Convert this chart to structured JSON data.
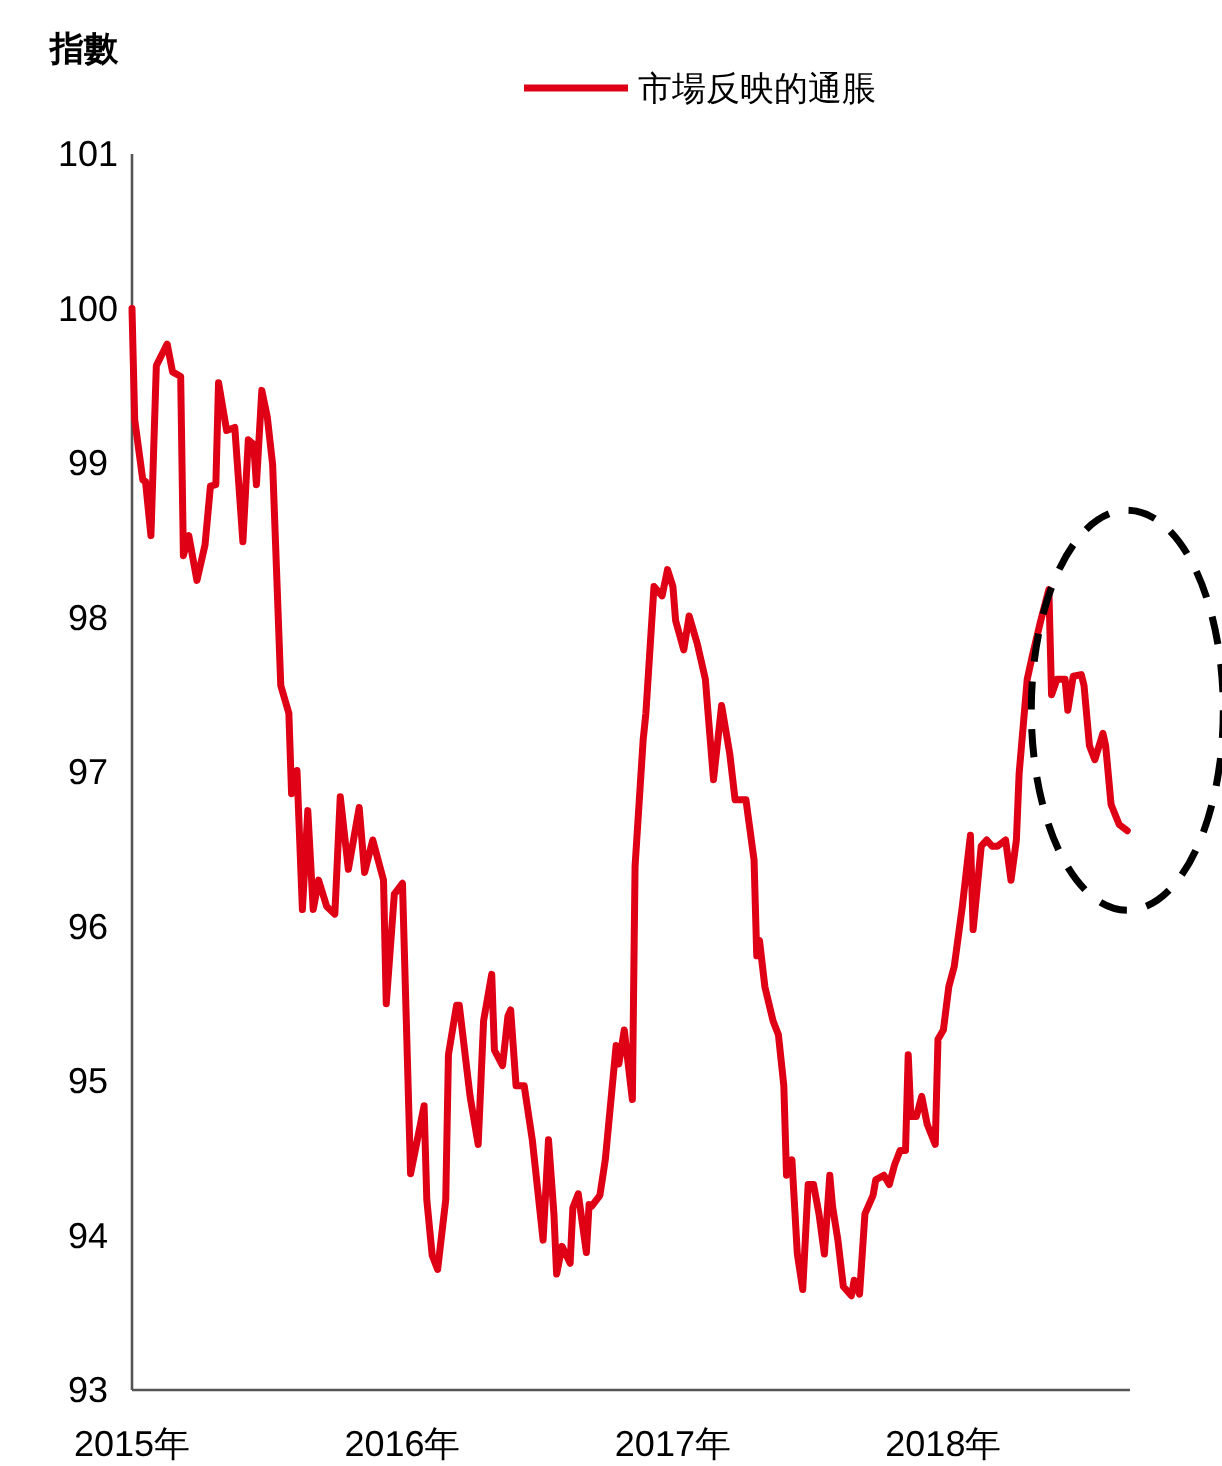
{
  "chart_data": {
    "type": "line",
    "ylabel": "指數",
    "legend": "top",
    "xlim": [
      2015,
      2018.69
    ],
    "xticks": [
      {
        "value": 2015,
        "label": "2015年"
      },
      {
        "value": 2016,
        "label": "2016年"
      },
      {
        "value": 2017,
        "label": "2017年"
      },
      {
        "value": 2018,
        "label": "2018年"
      }
    ],
    "ylim": [
      93,
      101
    ],
    "yticks": [
      93,
      94,
      95,
      96,
      97,
      98,
      99,
      100,
      101
    ],
    "series": [
      {
        "name": "市場反映的通脹",
        "color": "#e00016",
        "x": [
          2015.0,
          2015.01,
          2015.04,
          2015.05,
          2015.07,
          2015.09,
          2015.13,
          2015.15,
          2015.18,
          2015.19,
          2015.21,
          2015.24,
          2015.27,
          2015.29,
          2015.31,
          2015.32,
          2015.35,
          2015.38,
          2015.41,
          2015.43,
          2015.45,
          2015.46,
          2015.48,
          2015.5,
          2015.52,
          2015.55,
          2015.58,
          2015.59,
          2015.61,
          2015.63,
          2015.65,
          2015.67,
          2015.69,
          2015.72,
          2015.75,
          2015.77,
          2015.8,
          2015.84,
          2015.86,
          2015.89,
          2015.93,
          2015.94,
          2015.97,
          2016.0,
          2016.03,
          2016.08,
          2016.09,
          2016.11,
          2016.13,
          2016.16,
          2016.17,
          2016.2,
          2016.21,
          2016.25,
          2016.28,
          2016.3,
          2016.33,
          2016.34,
          2016.37,
          2016.39,
          2016.4,
          2016.42,
          2016.45,
          2016.48,
          2016.52,
          2016.54,
          2016.56,
          2016.57,
          2016.59,
          2016.62,
          2016.63,
          2016.65,
          2016.68,
          2016.69,
          2016.7,
          2016.73,
          2016.75,
          2016.79,
          2016.8,
          2016.82,
          2016.85,
          2016.86,
          2016.89,
          2016.9,
          2016.93,
          2016.96,
          2016.98,
          2017.0,
          2017.01,
          2017.04,
          2017.06,
          2017.09,
          2017.12,
          2017.13,
          2017.15,
          2017.18,
          2017.21,
          2017.23,
          2017.27,
          2017.3,
          2017.31,
          2017.32,
          2017.34,
          2017.37,
          2017.39,
          2017.41,
          2017.42,
          2017.44,
          2017.46,
          2017.48,
          2017.5,
          2017.52,
          2017.54,
          2017.56,
          2017.58,
          2017.59,
          2017.61,
          2017.63,
          2017.66,
          2017.67,
          2017.69,
          2017.71,
          2017.74,
          2017.75,
          2017.78,
          2017.8,
          2017.82,
          2017.84,
          2017.86,
          2017.87,
          2017.88,
          2017.9,
          2017.92,
          2017.94,
          2017.97,
          2017.98,
          2018.0,
          2018.02,
          2018.04,
          2018.07,
          2018.1,
          2018.11,
          2018.14,
          2018.16,
          2018.18,
          2018.2,
          2018.23,
          2018.25,
          2018.27,
          2018.28,
          2018.31,
          2018.33,
          2018.36,
          2018.39,
          2018.4,
          2018.42,
          2018.45,
          2018.46,
          2018.48,
          2018.51,
          2018.52,
          2018.54,
          2018.56,
          2018.59,
          2018.6,
          2018.62,
          2018.65,
          2018.68
        ],
        "values": [
          100.0,
          99.28,
          98.89,
          98.88,
          98.53,
          99.63,
          99.77,
          99.59,
          99.56,
          98.4,
          98.53,
          98.24,
          98.47,
          98.85,
          98.86,
          99.52,
          99.21,
          99.23,
          98.49,
          99.15,
          99.12,
          98.86,
          99.47,
          99.3,
          98.99,
          97.56,
          97.38,
          96.86,
          97.01,
          96.11,
          96.75,
          96.11,
          96.3,
          96.13,
          96.08,
          96.84,
          96.37,
          96.77,
          96.35,
          96.56,
          96.3,
          95.5,
          96.21,
          96.28,
          94.4,
          94.84,
          94.23,
          93.87,
          93.78,
          94.23,
          95.17,
          95.49,
          95.49,
          94.9,
          94.59,
          95.39,
          95.69,
          95.2,
          95.1,
          95.42,
          95.46,
          94.97,
          94.97,
          94.62,
          93.97,
          94.62,
          94.14,
          93.75,
          93.93,
          93.82,
          94.18,
          94.27,
          93.89,
          94.2,
          94.19,
          94.26,
          94.49,
          95.23,
          95.11,
          95.33,
          94.88,
          96.39,
          97.21,
          97.38,
          98.2,
          98.14,
          98.31,
          98.2,
          97.98,
          97.79,
          98.01,
          97.83,
          97.6,
          97.38,
          96.95,
          97.43,
          97.12,
          96.82,
          96.82,
          96.43,
          95.81,
          95.91,
          95.61,
          95.39,
          95.3,
          94.97,
          94.39,
          94.49,
          93.88,
          93.65,
          94.33,
          94.33,
          94.14,
          93.88,
          94.39,
          94.19,
          93.97,
          93.67,
          93.61,
          93.71,
          93.62,
          94.14,
          94.26,
          94.36,
          94.39,
          94.33,
          94.46,
          94.55,
          94.55,
          95.17,
          94.77,
          94.77,
          94.9,
          94.72,
          94.59,
          95.27,
          95.33,
          95.61,
          95.74,
          96.13,
          96.59,
          95.98,
          96.52,
          96.56,
          96.52,
          96.52,
          96.56,
          96.3,
          96.56,
          96.99,
          97.6,
          97.76,
          97.98,
          98.18,
          97.5,
          97.6,
          97.6,
          97.4,
          97.62,
          97.63,
          97.56,
          97.17,
          97.08,
          97.25,
          97.17,
          96.79,
          96.66,
          96.62
        ]
      }
    ]
  }
}
